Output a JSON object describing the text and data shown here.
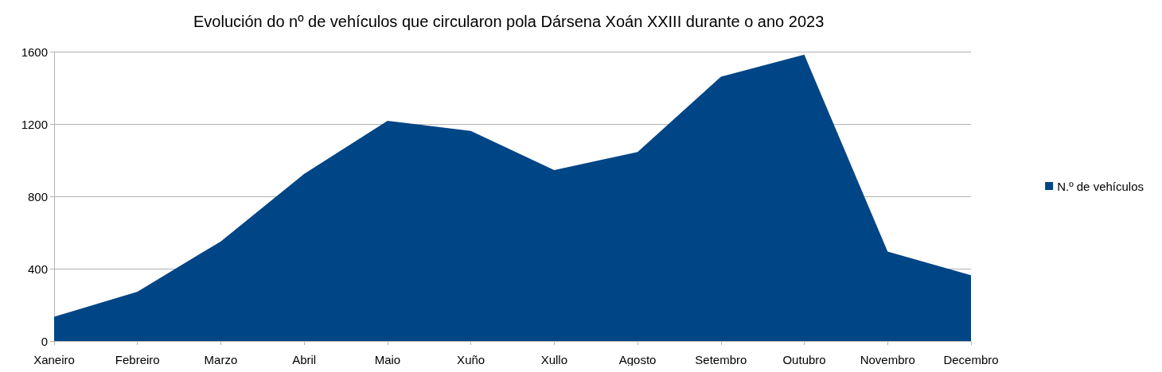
{
  "chart_data": {
    "type": "area",
    "title": "Evolución do nº de vehículos que circularon pola Dársena Xoán XXIII durante o ano 2023",
    "categories": [
      "Xaneiro",
      "Febreiro",
      "Marzo",
      "Abril",
      "Maio",
      "Xuño",
      "Xullo",
      "Agosto",
      "Setembro",
      "Outubro",
      "Novembro",
      "Decembro"
    ],
    "series": [
      {
        "name": "N.º de vehículos",
        "color": "#004586",
        "values": [
          134,
          273,
          551,
          924,
          1218,
          1162,
          945,
          1045,
          1461,
          1583,
          494,
          364
        ]
      }
    ],
    "ylim": [
      0,
      1600
    ],
    "yticks": [
      0,
      400,
      800,
      1200,
      1600
    ],
    "grid": "y",
    "legend": "right"
  }
}
